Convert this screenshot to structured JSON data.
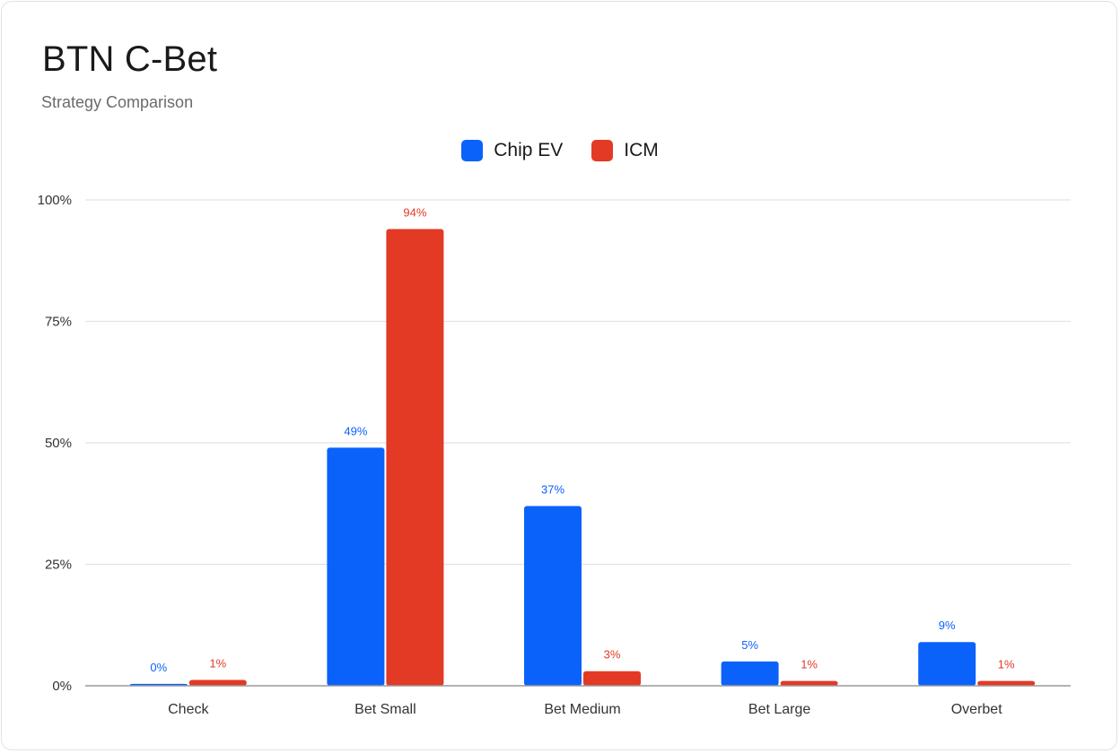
{
  "chart_data": {
    "type": "bar",
    "title": "BTN C-Bet",
    "subtitle": "Strategy Comparison",
    "categories": [
      "Check",
      "Bet Small",
      "Bet Medium",
      "Bet Large",
      "Overbet"
    ],
    "series": [
      {
        "name": "Chip EV",
        "color": "#0b62fb",
        "values": [
          0.4,
          49,
          37,
          5,
          9
        ],
        "labels": [
          "0%",
          "49%",
          "37%",
          "5%",
          "9%"
        ]
      },
      {
        "name": "ICM",
        "color": "#e33a26",
        "values": [
          1.2,
          94,
          3,
          1,
          1
        ],
        "labels": [
          "1%",
          "94%",
          "3%",
          "1%",
          "1%"
        ]
      }
    ],
    "ylim": [
      0,
      100
    ],
    "yticks": [
      "0%",
      "25%",
      "50%",
      "75%",
      "100%"
    ],
    "ytick_values": [
      0,
      25,
      50,
      75,
      100
    ],
    "grid": true,
    "legend_position": "top-center"
  }
}
